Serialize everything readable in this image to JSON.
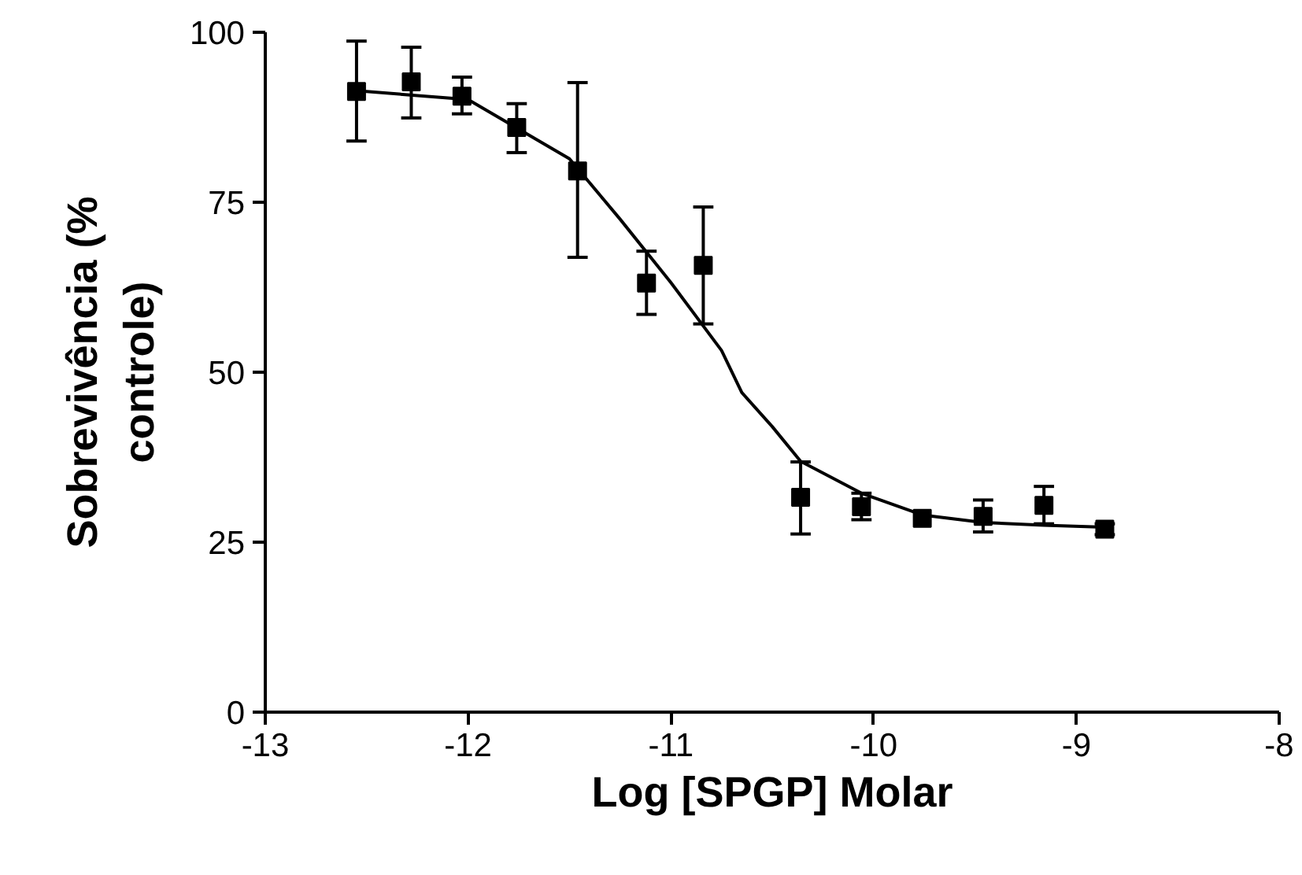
{
  "chart_data": {
    "type": "scatter",
    "xlabel": "Log [SPGP] Molar",
    "ylabel": "Sobrevivência (% controle)",
    "xlim": [
      -13,
      -8
    ],
    "ylim": [
      0,
      100
    ],
    "xticks": [
      -13,
      -12,
      -11,
      -10,
      -9,
      -8
    ],
    "yticks": [
      0,
      25,
      50,
      75,
      100
    ],
    "grid": false,
    "series": [
      {
        "color": "#000000",
        "marker": "square",
        "x": [
          -12.55,
          -12.28,
          -12.03,
          -11.76,
          -11.46,
          -11.12,
          -10.84,
          -10.36,
          -10.06,
          -9.76,
          -9.46,
          -9.16,
          -8.86
        ],
        "values": [
          91.3,
          92.7,
          90.6,
          86.0,
          79.6,
          63.1,
          65.7,
          31.6,
          30.2,
          28.5,
          28.8,
          30.4,
          26.9
        ],
        "errors": [
          [
            84.0,
            98.7
          ],
          [
            87.4,
            97.8
          ],
          [
            88.0,
            93.4
          ],
          [
            82.3,
            89.5
          ],
          [
            66.9,
            92.6
          ],
          [
            58.5,
            67.8
          ],
          [
            57.1,
            74.3
          ],
          [
            26.2,
            36.8
          ],
          [
            28.3,
            32.2
          ],
          null,
          [
            26.5,
            31.2
          ],
          [
            27.7,
            33.2
          ],
          [
            26.1,
            27.7
          ]
        ]
      },
      {
        "type": "line",
        "color": "#000000",
        "marker": "none",
        "line_style": "solid",
        "x": [
          -12.55,
          -12.0,
          -11.5,
          -11.25,
          -11.0,
          -10.75,
          -10.65,
          -10.5,
          -10.36,
          -10.06,
          -9.76,
          -9.46,
          -9.16,
          -8.86
        ],
        "values": [
          91.4,
          90.1,
          81.4,
          72.5,
          63.2,
          53.2,
          47.0,
          42.0,
          36.9,
          32.2,
          29.0,
          27.9,
          27.5,
          27.2
        ]
      }
    ]
  }
}
